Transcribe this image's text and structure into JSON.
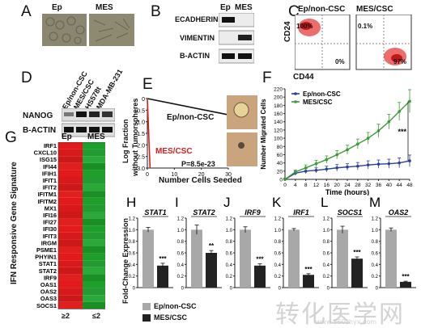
{
  "panel_letters": {
    "A": "A",
    "B": "B",
    "C": "C",
    "D": "D",
    "E": "E",
    "F": "F",
    "G": "G",
    "H": "H",
    "I": "I",
    "J": "J",
    "K": "K",
    "L": "L",
    "M": "M"
  },
  "panel_a": {
    "ep": "Ep",
    "mes": "MES"
  },
  "panel_b": {
    "ep": "Ep",
    "mes": "MES",
    "rows": [
      "ECADHERIN",
      "VIMENTIN",
      "B-ACTIN"
    ]
  },
  "panel_c": {
    "left_title": "Ep/non-CSC",
    "right_title": "MES/CSC",
    "left_q_tl": "100%",
    "left_q_br": "0%",
    "right_q_tl": "0.1%",
    "right_q_br": "97%",
    "ylabel": "CD24",
    "xlabel": "CD44"
  },
  "panel_d": {
    "cols": [
      "Ep/non-CSC",
      "MES/CSC",
      "HS578t",
      "MDA-MB-231"
    ],
    "rows": [
      "NANOG",
      "B-ACTIN"
    ]
  },
  "panel_e": {
    "ylabel_line1": "Log Fraction",
    "ylabel_line2": "without Tumorspheres",
    "xlabel": "Number Cells Seeded",
    "x_ticks": [
      "0",
      "10",
      "20",
      "30"
    ],
    "y_ticks": [
      "0",
      "-0.5",
      "-1.0",
      "-1.5",
      "-2.0",
      "-2.5",
      "-3.0"
    ],
    "line_ep": "Ep/non-CSC",
    "line_mes": "MES/CSC",
    "pvalue": "P=8.5e-23",
    "colors": {
      "ep": "#111111",
      "mes": "#d62020"
    }
  },
  "panel_g": {
    "ylabel": "IFN Responsive Gene Signature",
    "col_headers": [
      "Ep",
      "MES"
    ],
    "genes": [
      "IRF1",
      "CXCL10",
      "ISG15",
      "IFI44",
      "IFIH1",
      "IFIT1",
      "IFIT2",
      "IFITM1",
      "IFITM2",
      "MX1",
      "IFI16",
      "IFI27",
      "IFI30",
      "IFIT3",
      "IRGM",
      "PSME1",
      "PHYIN1",
      "STAT1",
      "STAT2",
      "IRF9",
      "OAS1",
      "OAS2",
      "OAS3",
      "SOCS1"
    ],
    "scale": [
      "≥2",
      "≤2"
    ]
  },
  "chart_data": [
    {
      "type": "line",
      "panel": "F",
      "xlabel": "Time (hours)",
      "ylabel": "Number Migrated Cells",
      "x": [
        0,
        4,
        8,
        12,
        16,
        20,
        24,
        28,
        32,
        36,
        40,
        44,
        48
      ],
      "x_ticks": [
        "0",
        "4",
        "8",
        "12",
        "16",
        "20",
        "24",
        "28",
        "32",
        "36",
        "40",
        "44",
        "48"
      ],
      "xlim": [
        0,
        48
      ],
      "ylim": [
        0,
        220
      ],
      "y_ticks": [
        "0",
        "20",
        "40",
        "60",
        "80",
        "100",
        "120",
        "140",
        "160",
        "180",
        "200",
        "220"
      ],
      "series": [
        {
          "name": "Ep/non-CSC",
          "color": "#2a3e9e",
          "values": [
            0,
            15,
            20,
            22,
            25,
            28,
            30,
            32,
            35,
            37,
            38,
            40,
            45
          ],
          "err": [
            3,
            5,
            6,
            6,
            7,
            8,
            8,
            9,
            10,
            10,
            11,
            12,
            14
          ]
        },
        {
          "name": "MES/CSC",
          "color": "#3a9a35",
          "values": [
            0,
            18,
            28,
            38,
            48,
            60,
            72,
            86,
            100,
            118,
            140,
            165,
            190
          ],
          "err": [
            3,
            5,
            7,
            8,
            9,
            10,
            11,
            12,
            14,
            16,
            18,
            22,
            28
          ]
        }
      ],
      "annotation": "***",
      "legend": "top-left"
    },
    {
      "type": "bar",
      "panels": "H-M",
      "ylabel": "Fold-Change Expression",
      "legend": [
        "Ep/non-CSC",
        "MES/CSC"
      ],
      "colors": {
        "ep": "#a8a8a8",
        "mes": "#222222"
      },
      "subplots": [
        {
          "letter": "H",
          "gene": "STAT1",
          "y_ticks": [
            "0",
            "0.2",
            "0.4",
            "0.6",
            "0.8",
            "1.0",
            "1.2"
          ],
          "ylim": [
            0,
            1.2
          ],
          "values": [
            1.0,
            0.38
          ],
          "err": [
            0.04,
            0.04
          ],
          "sig": "***"
        },
        {
          "letter": "I",
          "gene": "STAT2",
          "y_ticks": [
            "0",
            "0.2",
            "0.4",
            "0.6",
            "0.8",
            "1.0",
            "1.2"
          ],
          "ylim": [
            0,
            1.2
          ],
          "values": [
            1.0,
            0.6
          ],
          "err": [
            0.08,
            0.04
          ],
          "sig": "**"
        },
        {
          "letter": "J",
          "gene": "IRF9",
          "y_ticks": [
            "0",
            "0.2",
            "0.4",
            "0.6",
            "0.8",
            "1.0",
            "1.2"
          ],
          "ylim": [
            0,
            1.2
          ],
          "values": [
            1.0,
            0.38
          ],
          "err": [
            0.05,
            0.03
          ],
          "sig": "***"
        },
        {
          "letter": "K",
          "gene": "IRF1",
          "y_ticks": [
            "0",
            "0.2",
            "0.4",
            "0.6",
            "0.8",
            "1.0",
            "1.2"
          ],
          "ylim": [
            0,
            1.2
          ],
          "values": [
            1.0,
            0.22
          ],
          "err": [
            0.02,
            0.02
          ],
          "sig": "***"
        },
        {
          "letter": "L",
          "gene": "SOCS1",
          "y_ticks": [
            "0",
            "0.2",
            "0.4",
            "0.6",
            "0.8",
            "1.0",
            "1.2"
          ],
          "ylim": [
            0,
            1.2
          ],
          "values": [
            1.0,
            0.5
          ],
          "err": [
            0.06,
            0.03
          ],
          "sig": "***"
        },
        {
          "letter": "M",
          "gene": "OAS2",
          "y_ticks": [
            "0",
            "0.2",
            "0.4",
            "0.6",
            "0.8",
            "1.0",
            "1.2"
          ],
          "ylim": [
            0,
            1.2
          ],
          "values": [
            1.0,
            0.1
          ],
          "err": [
            0.03,
            0.01
          ],
          "sig": "***"
        }
      ]
    }
  ],
  "watermark": {
    "text": "转化医学网",
    "url": "www.360zhyx.com"
  }
}
